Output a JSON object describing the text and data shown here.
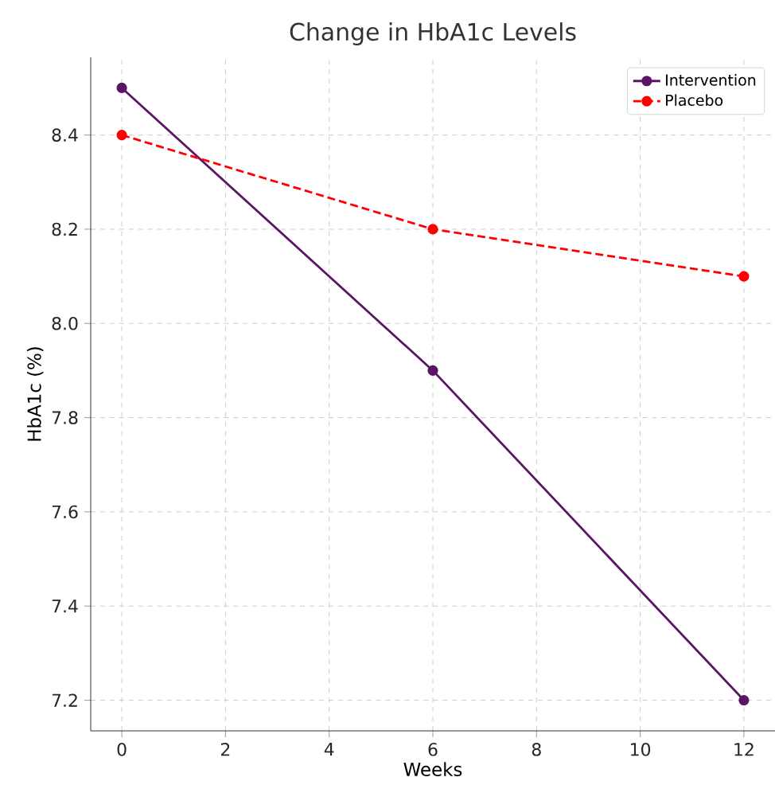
{
  "chart_data": {
    "type": "line",
    "title": "Change in HbA1c Levels",
    "xlabel": "Weeks",
    "ylabel": "HbA1c (%)",
    "x": [
      0,
      6,
      12
    ],
    "series": [
      {
        "name": "Intervention",
        "color": "#5c1566",
        "values": [
          8.5,
          7.9,
          7.2
        ],
        "line_style": "solid"
      },
      {
        "name": "Placebo",
        "color": "#ff0000",
        "values": [
          8.4,
          8.2,
          8.1
        ],
        "line_style": "dashed"
      }
    ],
    "xlim": [
      -0.6,
      12.6
    ],
    "ylim": [
      7.135,
      8.565
    ],
    "xticks": [
      0,
      2,
      4,
      6,
      8,
      10,
      12
    ],
    "yticks": [
      7.2,
      7.4,
      7.6,
      7.8,
      {
        "value": 8,
        "label": "8.0"
      },
      8.2,
      8.4
    ],
    "grid": true,
    "legend": "top right",
    "marker": "circle"
  }
}
